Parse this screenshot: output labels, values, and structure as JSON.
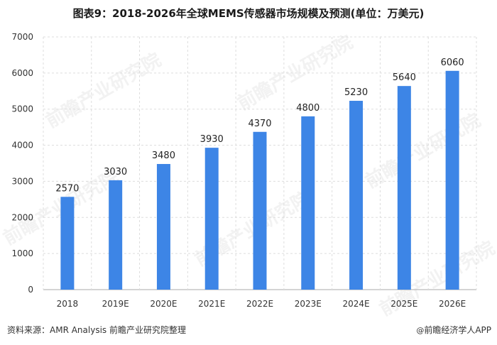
{
  "title": "图表9：2018-2026年全球MEMS传感器市场规模及预测(单位：万美元)",
  "footer": {
    "source": "资料来源：AMR Analysis 前瞻产业研究院整理",
    "brand_icon": "@",
    "brand": "前瞻经济学人APP"
  },
  "watermark": {
    "text": "前瞻产业研究院"
  },
  "colors": {
    "bar": "#3d85e6",
    "grid": "#dddddd",
    "axis": "#aaaaaa",
    "plot_bg": "#ffffff"
  },
  "chart_data": {
    "type": "bar",
    "title": "图表9：2018-2026年全球MEMS传感器市场规模及预测(单位：万美元)",
    "categories": [
      "2018",
      "2019E",
      "2020E",
      "2021E",
      "2022E",
      "2023E",
      "2024E",
      "2025E",
      "2026E"
    ],
    "values": [
      2570,
      3030,
      3480,
      3930,
      4370,
      4800,
      5230,
      5640,
      6060
    ],
    "yticks": [
      0,
      1000,
      2000,
      3000,
      4000,
      5000,
      6000,
      7000
    ],
    "ylim": [
      0,
      7000
    ],
    "xlabel": "",
    "ylabel": "",
    "grid": true,
    "data_labels": true
  }
}
